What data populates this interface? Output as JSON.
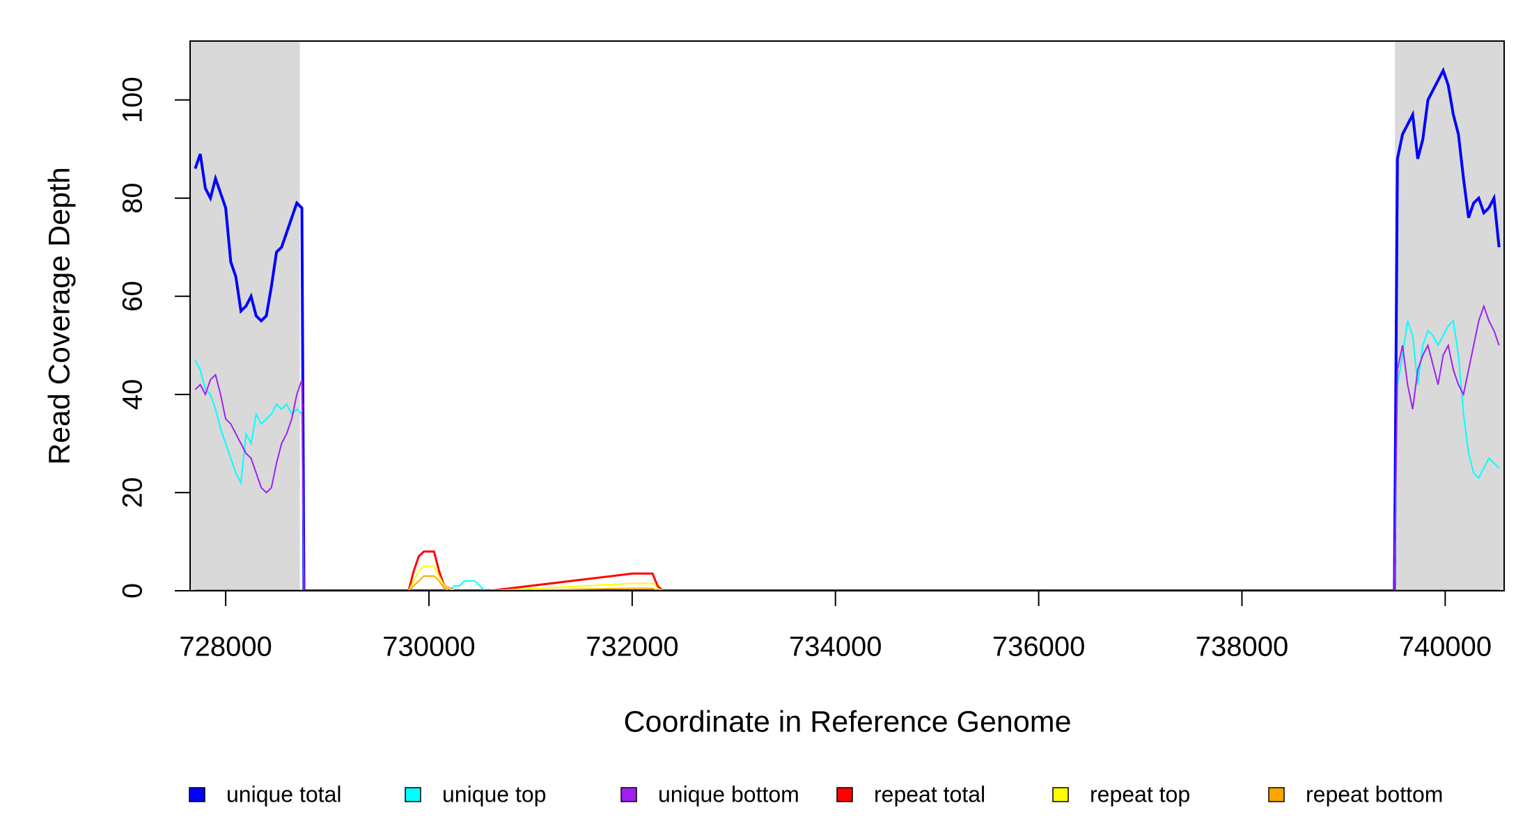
{
  "chart_data": {
    "type": "line",
    "x_label": "Coordinate in Reference Genome",
    "y_label": "Read Coverage Depth",
    "xlim": [
      727650,
      740580
    ],
    "ylim": [
      0,
      112
    ],
    "xticks": [
      728000,
      730000,
      732000,
      734000,
      736000,
      738000,
      740000
    ],
    "yticks": [
      0,
      20,
      40,
      60,
      80,
      100
    ],
    "highlight_ranges": [
      [
        727650,
        728730
      ],
      [
        739505,
        740580
      ]
    ],
    "highlight_color": "#d9d9d9",
    "legend": "bottom",
    "x": [
      727700,
      727750,
      727800,
      727850,
      727900,
      727950,
      728000,
      728050,
      728100,
      728150,
      728200,
      728250,
      728300,
      728350,
      728400,
      728450,
      728500,
      728550,
      728600,
      728650,
      728700,
      728750,
      728770,
      729800,
      729850,
      729900,
      729950,
      730000,
      730050,
      730100,
      730150,
      730200,
      730250,
      730300,
      730350,
      730400,
      730450,
      730500,
      730550,
      730600,
      732000,
      732050,
      732100,
      732150,
      732200,
      732250,
      732300,
      739500,
      739530,
      739580,
      739630,
      739680,
      739730,
      739780,
      739830,
      739880,
      739930,
      739980,
      740030,
      740080,
      740130,
      740180,
      740230,
      740280,
      740330,
      740380,
      740430,
      740480,
      740530
    ],
    "series": [
      {
        "name": "unique total",
        "color": "#0000ff",
        "line_width": 4,
        "values": [
          86,
          89,
          82,
          80,
          84,
          81,
          78,
          67,
          64,
          57,
          58,
          60,
          56,
          55,
          56,
          62,
          69,
          70,
          73,
          76,
          79,
          78,
          0,
          0,
          0,
          0,
          0,
          0,
          0,
          0,
          0,
          0,
          0,
          0,
          0,
          0,
          0,
          0,
          0,
          0,
          0,
          0,
          0,
          0,
          0,
          0,
          0,
          0,
          88,
          93,
          95,
          97,
          88,
          92,
          100,
          102,
          104,
          106,
          103,
          97,
          93,
          84,
          76,
          79,
          80,
          77,
          78,
          80,
          70
        ]
      },
      {
        "name": "unique top",
        "color": "#00ffff",
        "line_width": 2,
        "values": [
          47,
          45,
          41,
          40,
          37,
          33,
          30,
          27,
          24,
          22,
          32,
          30,
          36,
          34,
          35,
          36,
          38,
          37,
          38,
          36,
          37,
          36,
          0,
          0,
          0,
          0,
          0,
          0,
          0,
          0,
          0,
          0,
          1,
          1,
          2,
          2,
          2,
          1,
          0,
          0,
          0,
          0,
          0,
          0,
          0,
          0,
          0,
          0,
          42,
          48,
          55,
          52,
          42,
          50,
          53,
          52,
          50,
          52,
          54,
          55,
          48,
          36,
          28,
          24,
          23,
          25,
          27,
          26,
          25
        ]
      },
      {
        "name": "unique bottom",
        "color": "#a020f0",
        "line_width": 2,
        "values": [
          41,
          42,
          40,
          43,
          44,
          40,
          35,
          34,
          32,
          30,
          28,
          27,
          24,
          21,
          20,
          21,
          26,
          30,
          32,
          35,
          40,
          43,
          0,
          0,
          0,
          0,
          0,
          0,
          0,
          0,
          0,
          0,
          0,
          0,
          0,
          0,
          0,
          0,
          0,
          0,
          0,
          0,
          0,
          0,
          0,
          0,
          0,
          0,
          45,
          50,
          42,
          37,
          45,
          48,
          50,
          46,
          42,
          48,
          50,
          45,
          42,
          40,
          45,
          50,
          55,
          58,
          55,
          53,
          50
        ]
      },
      {
        "name": "repeat total",
        "color": "#ff0000",
        "line_width": 3,
        "values": [
          0,
          0,
          0,
          0,
          0,
          0,
          0,
          0,
          0,
          0,
          0,
          0,
          0,
          0,
          0,
          0,
          0,
          0,
          0,
          0,
          0,
          0,
          0,
          0,
          4,
          7,
          8,
          8,
          8,
          4,
          1,
          0.5,
          0,
          0,
          0,
          0,
          0,
          0,
          0,
          0,
          3.5,
          3.5,
          3.5,
          3.5,
          3.5,
          1,
          0,
          0,
          0,
          0,
          0,
          0,
          0,
          0,
          0,
          0,
          0,
          0,
          0,
          0,
          0,
          0,
          0,
          0,
          0,
          0,
          0,
          0,
          0
        ]
      },
      {
        "name": "repeat top",
        "color": "#ffff00",
        "line_width": 2,
        "values": [
          0,
          0,
          0,
          0,
          0,
          0,
          0,
          0,
          0,
          0,
          0,
          0,
          0,
          0,
          0,
          0,
          0,
          0,
          0,
          0,
          0,
          0,
          0,
          0,
          2,
          4,
          5,
          5,
          5,
          3,
          1,
          0.5,
          0,
          0,
          0,
          0,
          0,
          0,
          0,
          0,
          1.5,
          1.5,
          1.5,
          1.5,
          1.5,
          0.5,
          0,
          0,
          0,
          0,
          0,
          0,
          0,
          0,
          0,
          0,
          0,
          0,
          0,
          0,
          0,
          0,
          0,
          0,
          0,
          0,
          0,
          0,
          0
        ]
      },
      {
        "name": "repeat bottom",
        "color": "#ffa500",
        "line_width": 2,
        "values": [
          0,
          0,
          0,
          0,
          0,
          0,
          0,
          0,
          0,
          0,
          0,
          0,
          0,
          0,
          0,
          0,
          0,
          0,
          0,
          0,
          0,
          0,
          0,
          0,
          1,
          2,
          3,
          3,
          3,
          2,
          0.5,
          0,
          0,
          0,
          0,
          0,
          0,
          0,
          0,
          0,
          0.5,
          0.5,
          0.5,
          0.5,
          0.5,
          0,
          0,
          0,
          0,
          0,
          0,
          0,
          0,
          0,
          0,
          0,
          0,
          0,
          0,
          0,
          0,
          0,
          0,
          0,
          0,
          0,
          0,
          0,
          0
        ]
      }
    ]
  }
}
